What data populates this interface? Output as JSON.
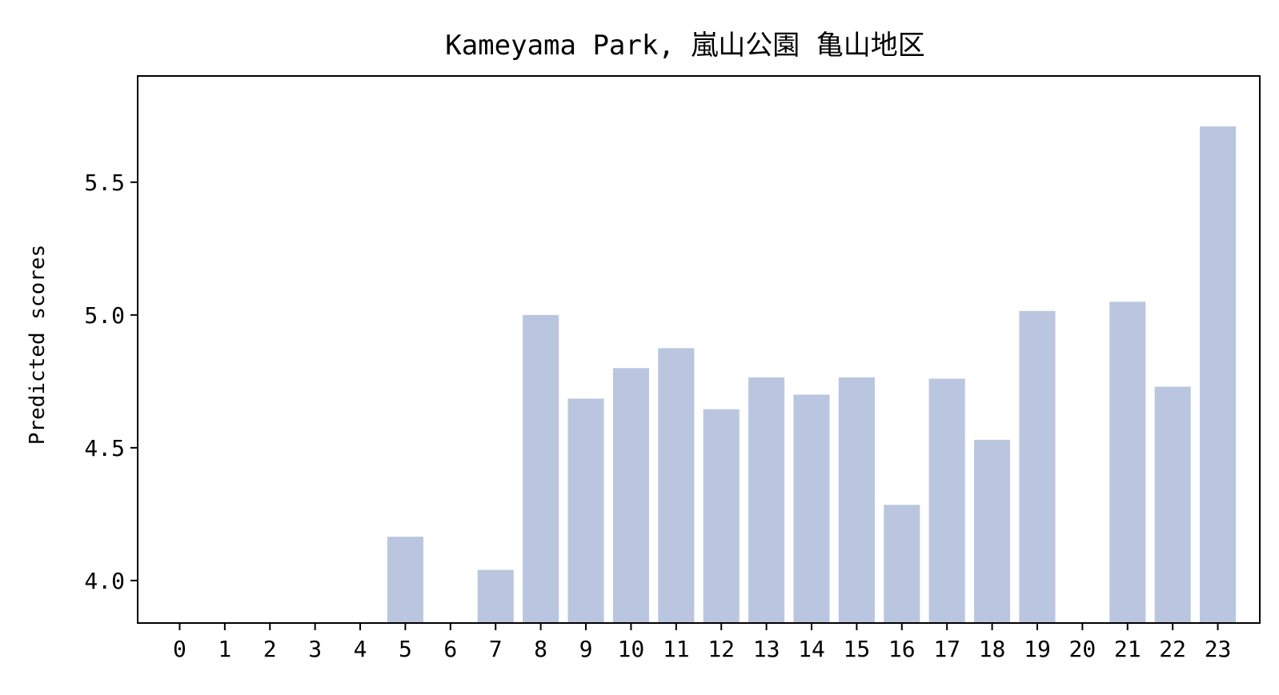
{
  "chart_data": {
    "type": "bar",
    "title": "Kameyama Park, 嵐山公園 亀山地区",
    "xlabel": "",
    "ylabel": "Predicted scores",
    "categories": [
      "0",
      "1",
      "2",
      "3",
      "4",
      "5",
      "6",
      "7",
      "8",
      "9",
      "10",
      "11",
      "12",
      "13",
      "14",
      "15",
      "16",
      "17",
      "18",
      "19",
      "20",
      "21",
      "22",
      "23"
    ],
    "values": [
      null,
      null,
      null,
      null,
      null,
      4.165,
      null,
      4.04,
      5.0,
      4.685,
      4.8,
      4.875,
      4.645,
      4.765,
      4.7,
      4.765,
      4.285,
      4.76,
      4.53,
      5.015,
      null,
      5.05,
      4.73,
      5.71
    ],
    "ylim": [
      3.84,
      5.9
    ],
    "yticks": [
      4.0,
      4.5,
      5.0,
      5.5
    ],
    "ytick_labels": [
      "4.0",
      "4.5",
      "5.0",
      "5.5"
    ],
    "bar_color": "#bac6e0",
    "grid": false,
    "legend": false
  }
}
